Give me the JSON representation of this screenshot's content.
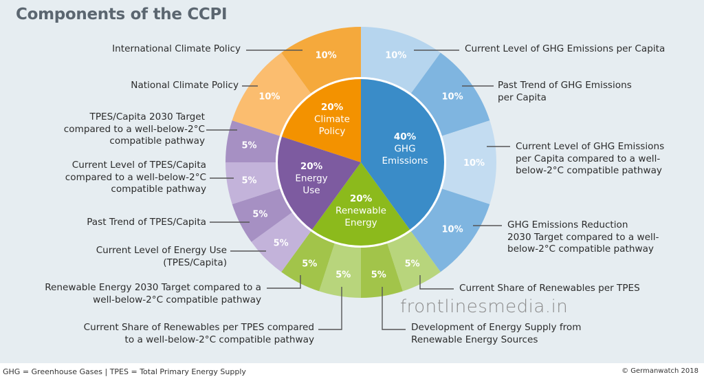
{
  "title": "Components of the CCPI",
  "footer": {
    "left": "GHG = Greenhouse Gases  | TPES = Total Primary Energy Supply",
    "right": "© Germanwatch 2018"
  },
  "watermark": "frontlinesmedia.in",
  "chart_data": {
    "type": "pie",
    "subtype": "nested-donut",
    "inner": [
      {
        "name": "GHG Emissions",
        "value": 40,
        "label": "40%",
        "color": "#3a8cc8"
      },
      {
        "name": "Renewable Energy",
        "value": 20,
        "label": "20%",
        "color": "#8cba1c"
      },
      {
        "name": "Energy Use",
        "value": 20,
        "label": "20%",
        "color": "#7d5ba0"
      },
      {
        "name": "Climate Policy",
        "value": 20,
        "label": "20%",
        "color": "#f39200"
      }
    ],
    "outer": [
      {
        "name": "Current Level of GHG Emissions per Capita",
        "value": 10,
        "label": "10%",
        "color": "#b6d5ee"
      },
      {
        "name": "Past Trend of GHG Emissions per Capita",
        "value": 10,
        "label": "10%",
        "color": "#7fb5e0"
      },
      {
        "name": "Current Level of GHG Emissions per Capita compared to a well-below-2°C compatible pathway",
        "value": 10,
        "label": "10%",
        "color": "#c3dcf1"
      },
      {
        "name": "GHG Emissions Reduction 2030 Target compared to a well-below-2°C compatible pathway",
        "value": 10,
        "label": "10%",
        "color": "#7fb5e0"
      },
      {
        "name": "Current Share of Renewables per TPES",
        "value": 5,
        "label": "5%",
        "color": "#b8d57c"
      },
      {
        "name": "Development of Energy Supply from Renewable Energy Sources",
        "value": 5,
        "label": "5%",
        "color": "#a2c44a"
      },
      {
        "name": "Current Share of Renewables per TPES compared to a well-below-2°C compatible pathway",
        "value": 5,
        "label": "5%",
        "color": "#b8d57c"
      },
      {
        "name": "Renewable Energy 2030 Target compared to a well-below-2°C compatible pathway",
        "value": 5,
        "label": "5%",
        "color": "#a2c44a"
      },
      {
        "name": "Current Level of Energy Use (TPES/Capita)",
        "value": 5,
        "label": "5%",
        "color": "#c3b3da"
      },
      {
        "name": "Past Trend of TPES/Capita",
        "value": 5,
        "label": "5%",
        "color": "#a690c3"
      },
      {
        "name": "Current Level of TPES/Capita compared to a well-below-2°C compatible pathway",
        "value": 5,
        "label": "5%",
        "color": "#c3b3da"
      },
      {
        "name": "TPES/Capita 2030 Target compared to a well-below-2°C compatible pathway",
        "value": 5,
        "label": "5%",
        "color": "#a690c3"
      },
      {
        "name": "National Climate Policy",
        "value": 10,
        "label": "10%",
        "color": "#fbbd6f"
      },
      {
        "name": "International Climate Policy",
        "value": 10,
        "label": "10%",
        "color": "#f5a93c"
      }
    ]
  },
  "callouts": [
    [
      "Current Level of GHG Emissions per Capita"
    ],
    [
      "Past Trend of GHG Emissions",
      "per Capita"
    ],
    [
      "Current Level of GHG Emissions",
      "per Capita compared to a well-",
      "below-2°C compatible pathway"
    ],
    [
      "GHG Emissions Reduction",
      "2030 Target compared to a well-",
      "below-2°C compatible pathway"
    ],
    [
      "Current Share of Renewables per TPES"
    ],
    [
      "Development of Energy Supply from",
      "Renewable Energy Sources"
    ],
    [
      "Current Share of Renewables per TPES compared",
      "to a well-below-2°C compatible pathway"
    ],
    [
      "Renewable Energy 2030 Target compared to a",
      "well-below-2°C compatible pathway"
    ],
    [
      "Current Level of Energy Use",
      "(TPES/Capita)"
    ],
    [
      "Past Trend of TPES/Capita"
    ],
    [
      "Current Level of TPES/Capita",
      "compared to a well-below-2°C",
      "compatible pathway"
    ],
    [
      "TPES/Capita 2030 Target",
      "compared to a well-below-2°C",
      "compatible pathway"
    ],
    [
      "National Climate Policy"
    ],
    [
      "International Climate Policy"
    ]
  ]
}
